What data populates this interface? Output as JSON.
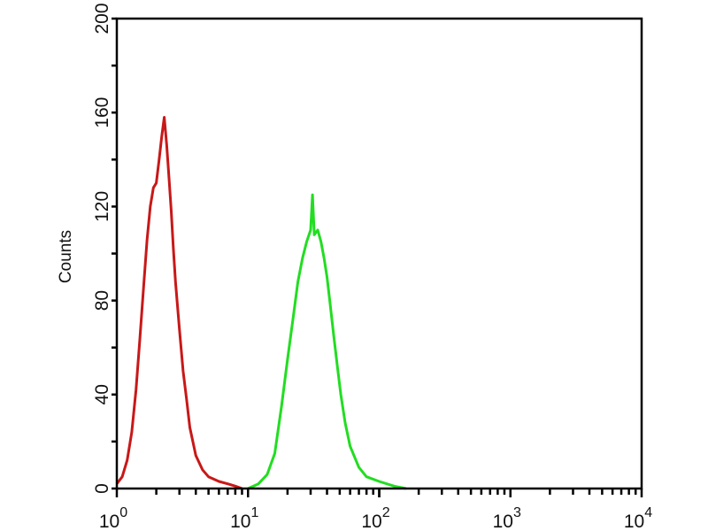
{
  "chart_data": {
    "type": "line",
    "title": "",
    "xlabel": "",
    "ylabel": "Counts",
    "x_scale": "log",
    "xlim": [
      1,
      10000
    ],
    "ylim": [
      0,
      200
    ],
    "grid": false,
    "y_ticks": [
      0,
      40,
      80,
      120,
      160,
      200
    ],
    "y_tick_labels": [
      "0",
      "40",
      "80",
      "120",
      "160",
      "200"
    ],
    "x_ticks": [
      1,
      10,
      100,
      1000,
      10000
    ],
    "x_tick_labels": [
      {
        "base": "10",
        "exp": "0"
      },
      {
        "base": "10",
        "exp": "1"
      },
      {
        "base": "10",
        "exp": "2"
      },
      {
        "base": "10",
        "exp": "3"
      },
      {
        "base": "10",
        "exp": "4"
      }
    ],
    "series": [
      {
        "color": "#c81818",
        "points": [
          [
            1.0,
            2
          ],
          [
            1.1,
            5
          ],
          [
            1.2,
            12
          ],
          [
            1.3,
            24
          ],
          [
            1.4,
            42
          ],
          [
            1.5,
            64
          ],
          [
            1.6,
            86
          ],
          [
            1.7,
            106
          ],
          [
            1.8,
            120
          ],
          [
            1.9,
            128
          ],
          [
            2.0,
            130
          ],
          [
            2.1,
            140
          ],
          [
            2.2,
            150
          ],
          [
            2.3,
            158
          ],
          [
            2.4,
            146
          ],
          [
            2.5,
            132
          ],
          [
            2.6,
            118
          ],
          [
            2.7,
            102
          ],
          [
            2.8,
            88
          ],
          [
            3.0,
            68
          ],
          [
            3.2,
            50
          ],
          [
            3.4,
            38
          ],
          [
            3.6,
            26
          ],
          [
            4.0,
            14
          ],
          [
            4.5,
            8
          ],
          [
            5.0,
            5
          ],
          [
            6.0,
            3
          ],
          [
            7.0,
            2
          ],
          [
            8.0,
            1
          ],
          [
            9.0,
            0
          ]
        ]
      },
      {
        "color": "#22dd22",
        "points": [
          [
            10,
            0
          ],
          [
            12,
            2
          ],
          [
            14,
            6
          ],
          [
            16,
            15
          ],
          [
            18,
            35
          ],
          [
            20,
            55
          ],
          [
            22,
            72
          ],
          [
            24,
            88
          ],
          [
            26,
            98
          ],
          [
            28,
            105
          ],
          [
            30,
            110
          ],
          [
            31,
            125
          ],
          [
            32,
            108
          ],
          [
            34,
            110
          ],
          [
            36,
            105
          ],
          [
            38,
            98
          ],
          [
            40,
            90
          ],
          [
            42,
            80
          ],
          [
            45,
            65
          ],
          [
            48,
            52
          ],
          [
            51,
            40
          ],
          [
            55,
            28
          ],
          [
            60,
            18
          ],
          [
            70,
            9
          ],
          [
            80,
            5
          ],
          [
            100,
            3
          ],
          [
            130,
            1
          ],
          [
            160,
            0
          ]
        ]
      }
    ]
  }
}
